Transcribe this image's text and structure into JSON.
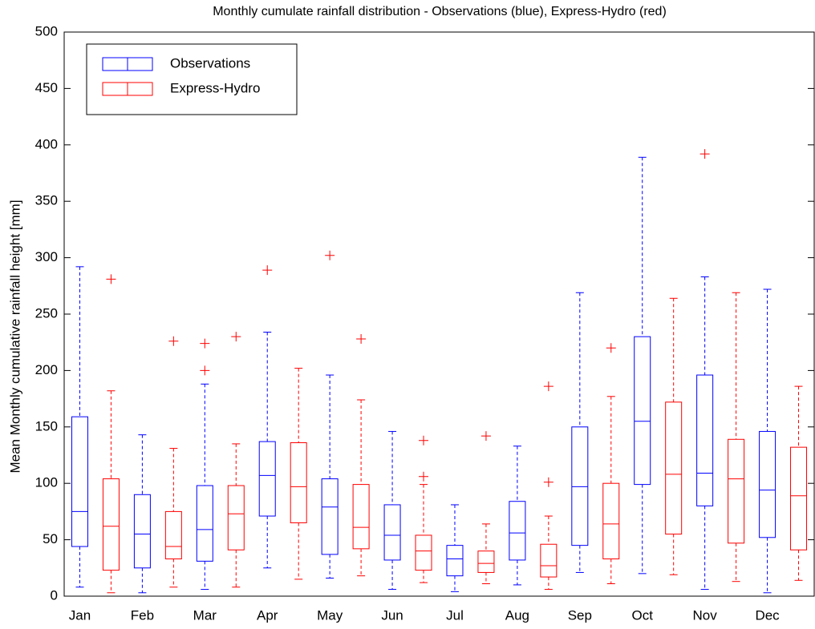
{
  "chart_data": {
    "type": "box",
    "title": "Monthly cumulate rainfall distribution - Observations (blue), Express-Hydro (red)",
    "y_label": "Mean Monthly cumulative rainfall height [mm]",
    "categories": [
      "Jan",
      "Feb",
      "Mar",
      "Apr",
      "May",
      "Jun",
      "Jul",
      "Aug",
      "Sep",
      "Oct",
      "Nov",
      "Dec"
    ],
    "ylim": [
      0,
      500
    ],
    "yticks": [
      0,
      50,
      100,
      150,
      200,
      250,
      300,
      350,
      400,
      450,
      500
    ],
    "legend": "upper left",
    "outlier_color": "#ff0000",
    "series": [
      {
        "name": "Observations",
        "color": "#0000ff",
        "low": [
          8,
          3,
          6,
          25,
          16,
          6,
          4,
          10,
          21,
          20,
          6,
          3
        ],
        "q1": [
          44,
          25,
          31,
          71,
          37,
          32,
          18,
          32,
          45,
          99,
          80,
          52
        ],
        "median": [
          75,
          55,
          59,
          107,
          79,
          54,
          33,
          56,
          97,
          155,
          109,
          94
        ],
        "q3": [
          159,
          90,
          98,
          137,
          104,
          81,
          45,
          84,
          150,
          230,
          196,
          146
        ],
        "high": [
          292,
          143,
          188,
          234,
          196,
          146,
          81,
          133,
          269,
          389,
          283,
          272
        ],
        "outliers": [
          [],
          [],
          [
            200,
            224
          ],
          [
            289
          ],
          [
            302
          ],
          [],
          [],
          [],
          [],
          [],
          [
            392
          ],
          []
        ]
      },
      {
        "name": "Express-Hydro",
        "color": "#ff0000",
        "low": [
          3,
          8,
          8,
          15,
          18,
          12,
          11,
          6,
          11,
          19,
          13,
          14
        ],
        "q1": [
          23,
          33,
          41,
          65,
          42,
          23,
          21,
          17,
          33,
          55,
          47,
          41
        ],
        "median": [
          62,
          44,
          73,
          97,
          61,
          40,
          29,
          27,
          64,
          108,
          104,
          89
        ],
        "q3": [
          104,
          75,
          98,
          136,
          99,
          54,
          40,
          46,
          100,
          172,
          139,
          132
        ],
        "high": [
          182,
          131,
          135,
          202,
          174,
          99,
          64,
          71,
          177,
          264,
          269,
          186
        ],
        "outliers": [
          [
            281
          ],
          [
            226
          ],
          [
            230
          ],
          [],
          [
            228
          ],
          [
            138,
            106
          ],
          [
            142
          ],
          [
            186,
            101
          ],
          [
            220
          ],
          [],
          [],
          []
        ]
      }
    ]
  }
}
